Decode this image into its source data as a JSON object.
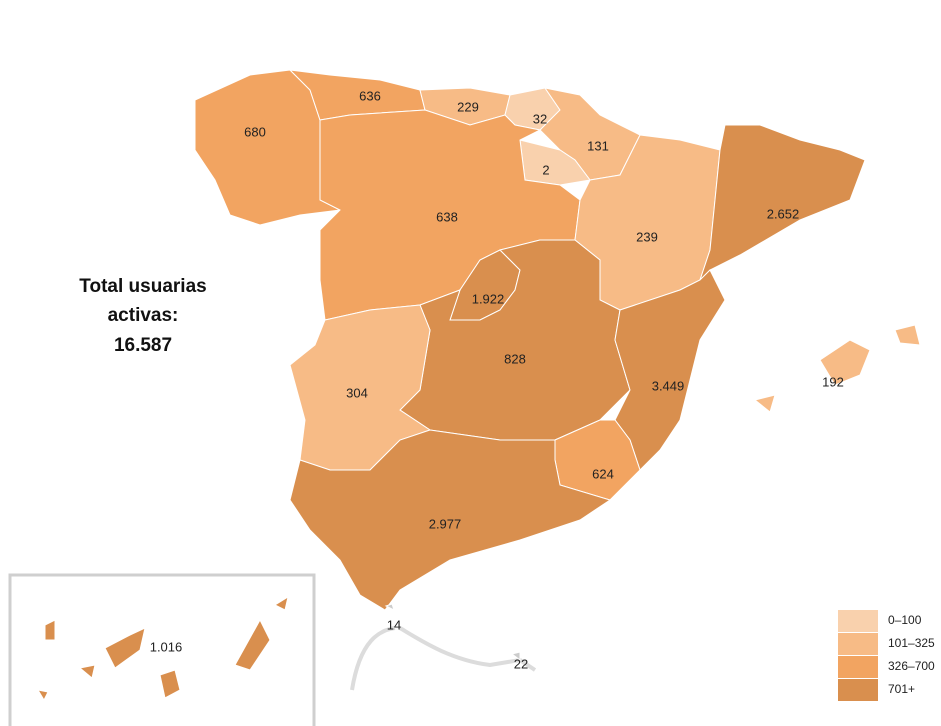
{
  "total": {
    "label": "Total usuarias activas:",
    "value": "16.587"
  },
  "regions": [
    {
      "value": "680",
      "color": "#f2a461"
    },
    {
      "value": "636",
      "color": "#f2a461"
    },
    {
      "value": "229",
      "color": "#f7bb86"
    },
    {
      "value": "32",
      "color": "#f9d1ad"
    },
    {
      "value": "131",
      "color": "#f7bb86"
    },
    {
      "value": "2",
      "color": "#f9d1ad"
    },
    {
      "value": "638",
      "color": "#f2a461"
    },
    {
      "value": "239",
      "color": "#f7bb86"
    },
    {
      "value": "2.652",
      "color": "#d98f4e"
    },
    {
      "value": "1.922",
      "color": "#d98f4e"
    },
    {
      "value": "828",
      "color": "#d98f4e"
    },
    {
      "value": "3.449",
      "color": "#d98f4e"
    },
    {
      "value": "304",
      "color": "#f7bb86"
    },
    {
      "value": "624",
      "color": "#f2a461"
    },
    {
      "value": "2.977",
      "color": "#d98f4e"
    },
    {
      "value": "192",
      "color": "#f7bb86"
    },
    {
      "value": "1.016",
      "color": "#d98f4e"
    },
    {
      "value": "14",
      "color": "#cccccc"
    },
    {
      "value": "22",
      "color": "#cccccc"
    }
  ],
  "legend": [
    {
      "label": "0–100",
      "color": "#f9d1ad"
    },
    {
      "label": "101–325",
      "color": "#f7bb86"
    },
    {
      "label": "326–700",
      "color": "#f2a461"
    },
    {
      "label": "701+",
      "color": "#d98f4e"
    }
  ]
}
